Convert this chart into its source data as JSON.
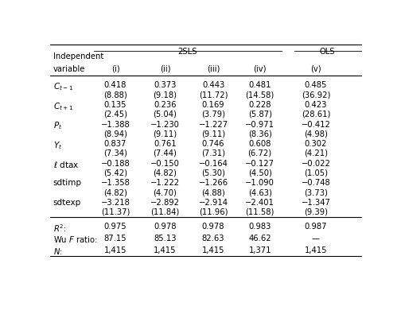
{
  "title_2sls": "2SLS",
  "title_ols": "OLS",
  "rows": [
    [
      [
        "0.418",
        "(8.88)"
      ],
      [
        "0.373",
        "(9.18)"
      ],
      [
        "0.443",
        "(11.72)"
      ],
      [
        "0.481",
        "(14.58)"
      ],
      [
        "0.485",
        "(36.92)"
      ]
    ],
    [
      [
        "0.135",
        "(2.45)"
      ],
      [
        "0.236",
        "(5.04)"
      ],
      [
        "0.169",
        "(3.79)"
      ],
      [
        "0.228",
        "(5.87)"
      ],
      [
        "0.423",
        "(28.61)"
      ]
    ],
    [
      [
        "−1.388",
        "(8.94)"
      ],
      [
        "−1.230",
        "(9.11)"
      ],
      [
        "−1.227",
        "(9.11)"
      ],
      [
        "−0.971",
        "(8.36)"
      ],
      [
        "−0.412",
        "(4.98)"
      ]
    ],
    [
      [
        "0.837",
        "(7.34)"
      ],
      [
        "0.761",
        "(7.44)"
      ],
      [
        "0.746",
        "(7.31)"
      ],
      [
        "0.608",
        "(6.72)"
      ],
      [
        "0.302",
        "(4.21)"
      ]
    ],
    [
      [
        "−0.188",
        "(5.42)"
      ],
      [
        "−0.150",
        "(4.82)"
      ],
      [
        "−0.164",
        "(5.30)"
      ],
      [
        "−0.127",
        "(4.50)"
      ],
      [
        "−0.022",
        "(1.05)"
      ]
    ],
    [
      [
        "−1.358",
        "(4.82)"
      ],
      [
        "−1.222",
        "(4.70)"
      ],
      [
        "−1.266",
        "(4.88)"
      ],
      [
        "−1.090",
        "(4.63)"
      ],
      [
        "−0.748",
        "(3.73)"
      ]
    ],
    [
      [
        "−3.218",
        "(11.37)"
      ],
      [
        "−2.892",
        "(11.84)"
      ],
      [
        "−2.914",
        "(11.96)"
      ],
      [
        "−2.401",
        "(11.58)"
      ],
      [
        "−1.347",
        "(9.39)"
      ]
    ]
  ],
  "stats": [
    [
      "0.975",
      "0.978",
      "0.978",
      "0.983",
      "0.987"
    ],
    [
      "87.15",
      "85.13",
      "82.63",
      "46.62",
      "—"
    ],
    [
      "1,415",
      "1,415",
      "1,415",
      "1,371",
      "1,415"
    ]
  ]
}
